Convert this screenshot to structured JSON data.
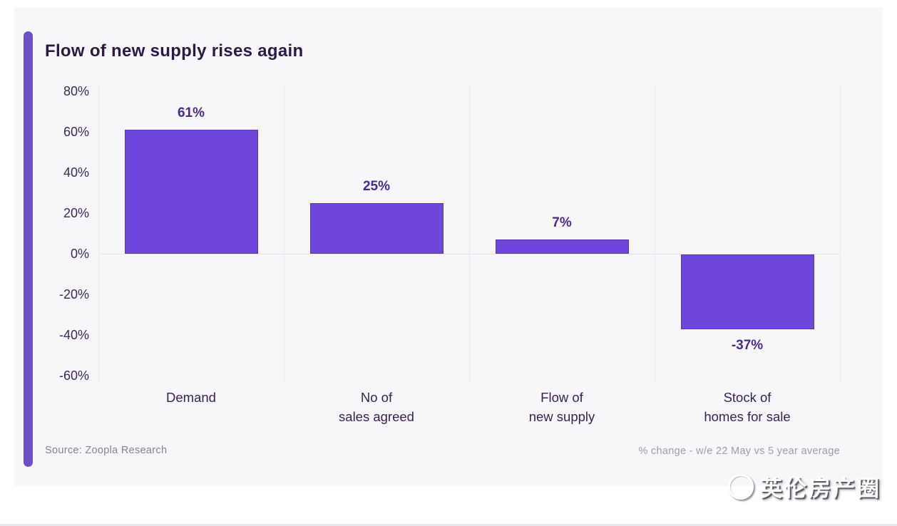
{
  "title": "Flow of new supply rises again",
  "source": "Source: Zoopla Research",
  "footnote": "% change - w/e 22 May vs 5 year average",
  "watermark": "英伦房产圈",
  "colors": {
    "bar": "#6e46db",
    "bar_border": "#5a39b5",
    "accent_bar": "#6b50c8",
    "panel_background": "#f7f6f9",
    "title_text": "#2d1a42",
    "value_label": "#4c2b8f",
    "axis_text": "#3d2a56"
  },
  "chart_data": {
    "type": "bar",
    "title": "Flow of new supply rises again",
    "categories": [
      "Demand",
      "No of\nsales agreed",
      "Flow of\nnew supply",
      "Stock of\nhomes for sale"
    ],
    "values": [
      61,
      25,
      7,
      -37
    ],
    "data_labels": [
      "61%",
      "25%",
      "7%",
      "-37%"
    ],
    "ytick_values": [
      80,
      60,
      40,
      20,
      0,
      -20,
      -40,
      -60
    ],
    "ytick_labels": [
      "80%",
      "60%",
      "40%",
      "20%",
      "0%",
      "-20%",
      "-40%",
      "-60%"
    ],
    "xlabel": "",
    "ylabel": "",
    "ylim": [
      -60,
      80
    ],
    "grid": "faint vertical category separators and zero line",
    "legend": "none",
    "bar_color": "#6e46db"
  }
}
